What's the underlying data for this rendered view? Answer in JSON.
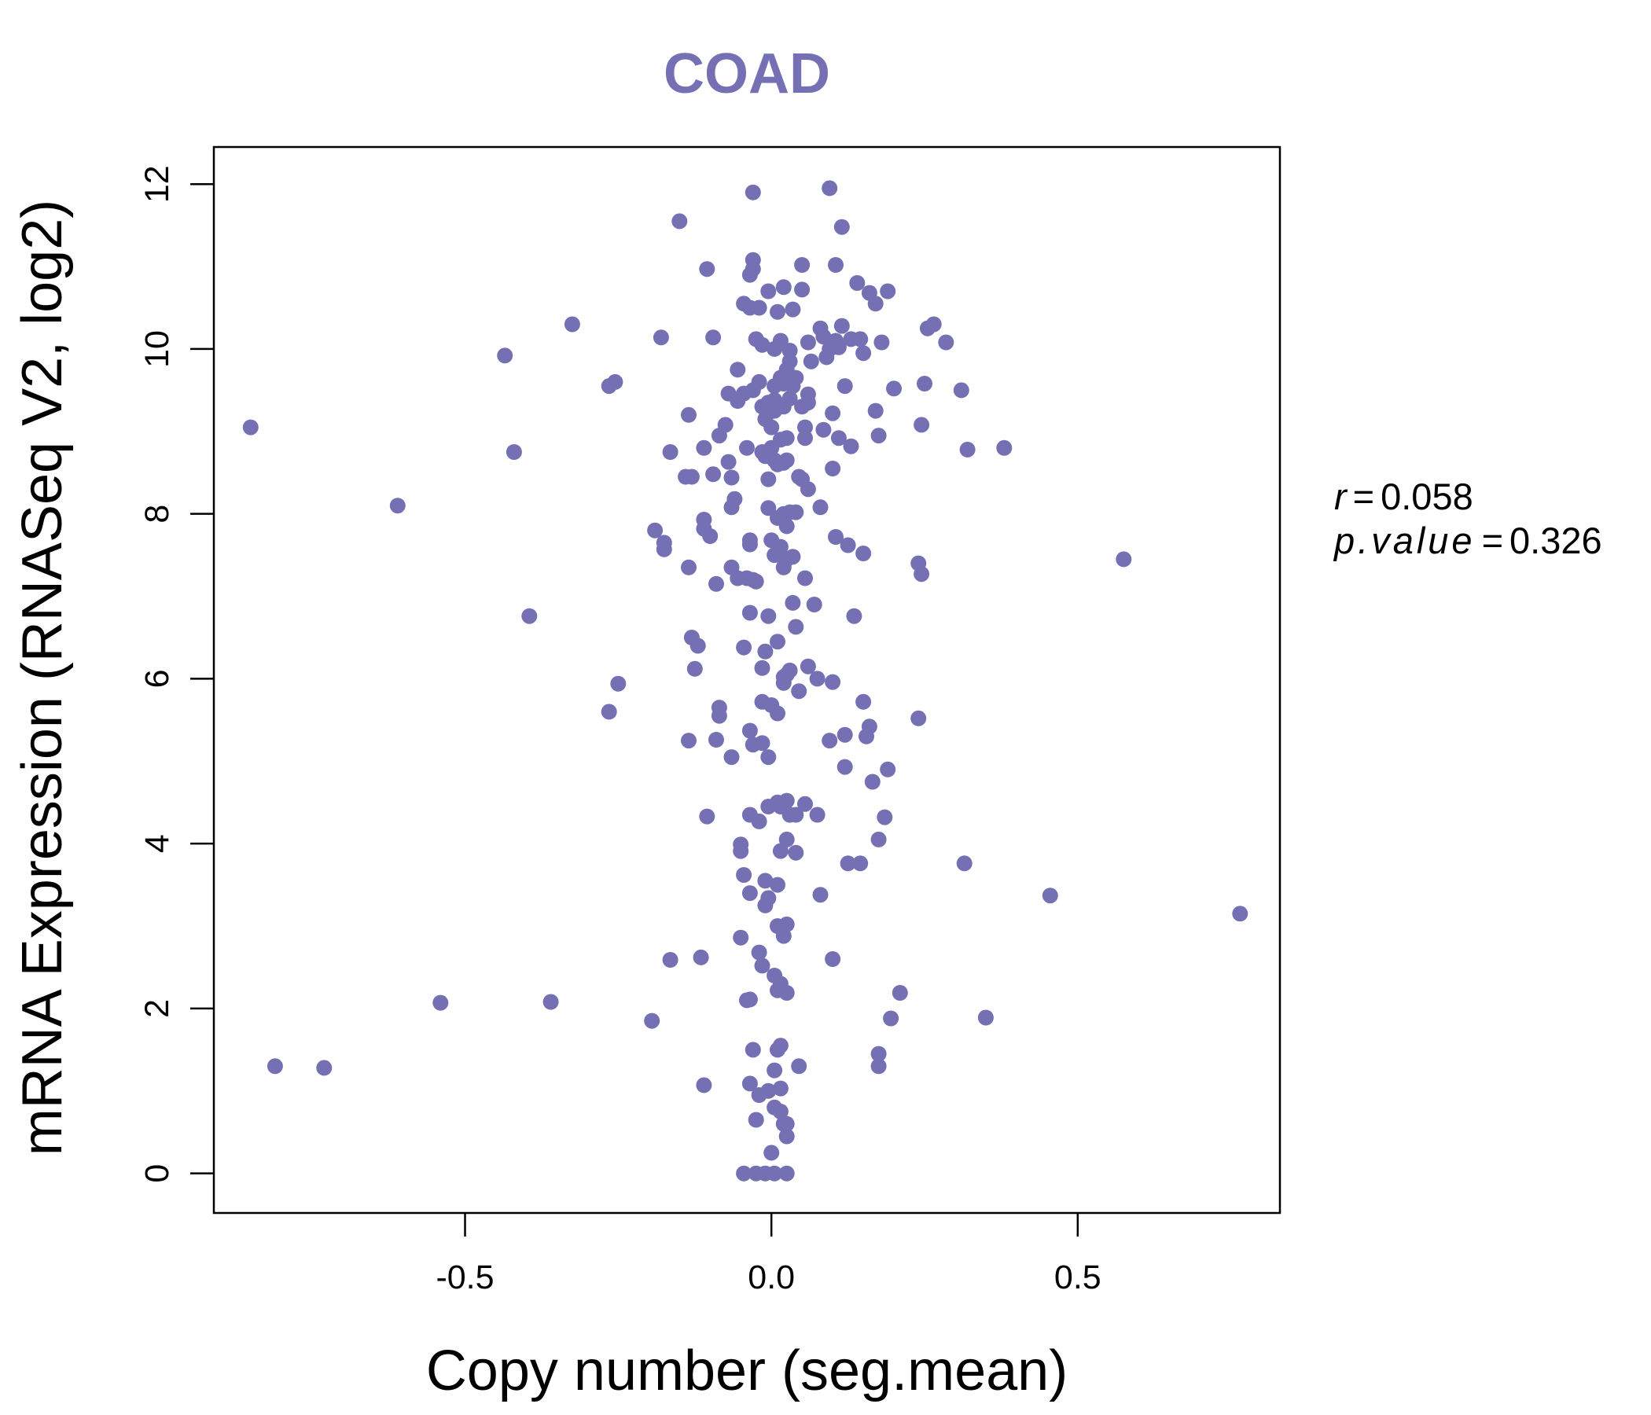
{
  "chart_data": {
    "type": "scatter",
    "title": "COAD",
    "xlabel": "Copy number (seg.mean)",
    "ylabel": "mRNA Expression (RNASeq V2, log2)",
    "xlim": [
      -0.91,
      0.83
    ],
    "ylim": [
      -0.48,
      12.45
    ],
    "x_ticks": [
      -0.5,
      0.0,
      0.5
    ],
    "x_tick_labels": [
      "-0.5",
      "0.0",
      "0.5"
    ],
    "y_ticks": [
      0,
      2,
      4,
      6,
      8,
      10,
      12
    ],
    "y_tick_labels": [
      "0",
      "2",
      "4",
      "6",
      "8",
      "10",
      "12"
    ],
    "grid": false,
    "legend": "none",
    "point_color": "#7570b3",
    "stats": {
      "r_label": "r",
      "r_value": "0.058",
      "p_label": "p.value",
      "p_value": "0.326"
    },
    "points": [
      [
        -0.85,
        9.05
      ],
      [
        -0.81,
        1.3
      ],
      [
        -0.73,
        1.28
      ],
      [
        -0.61,
        8.1
      ],
      [
        -0.54,
        2.07
      ],
      [
        -0.435,
        9.92
      ],
      [
        -0.42,
        8.75
      ],
      [
        -0.395,
        6.76
      ],
      [
        -0.36,
        2.08
      ],
      [
        -0.325,
        10.3
      ],
      [
        -0.265,
        9.55
      ],
      [
        -0.255,
        9.6
      ],
      [
        -0.265,
        5.6
      ],
      [
        -0.25,
        5.94
      ],
      [
        -0.195,
        1.85
      ],
      [
        -0.19,
        7.8
      ],
      [
        -0.18,
        10.14
      ],
      [
        -0.175,
        7.65
      ],
      [
        -0.175,
        7.57
      ],
      [
        -0.165,
        8.75
      ],
      [
        -0.165,
        2.59
      ],
      [
        -0.15,
        11.55
      ],
      [
        -0.14,
        8.45
      ],
      [
        -0.135,
        5.25
      ],
      [
        -0.135,
        9.2
      ],
      [
        -0.135,
        7.35
      ],
      [
        -0.13,
        6.5
      ],
      [
        -0.13,
        8.45
      ],
      [
        -0.125,
        6.12
      ],
      [
        -0.12,
        6.4
      ],
      [
        -0.115,
        2.62
      ],
      [
        -0.11,
        1.07
      ],
      [
        -0.11,
        8.8
      ],
      [
        -0.11,
        7.93
      ],
      [
        -0.11,
        7.82
      ],
      [
        -0.105,
        10.97
      ],
      [
        -0.105,
        4.33
      ],
      [
        -0.1,
        7.73
      ],
      [
        -0.095,
        8.48
      ],
      [
        -0.095,
        10.14
      ],
      [
        -0.09,
        7.15
      ],
      [
        -0.09,
        5.26
      ],
      [
        -0.085,
        8.95
      ],
      [
        -0.085,
        5.65
      ],
      [
        -0.085,
        5.55
      ],
      [
        -0.075,
        9.08
      ],
      [
        -0.07,
        9.46
      ],
      [
        -0.07,
        8.63
      ],
      [
        -0.065,
        7.35
      ],
      [
        -0.065,
        5.05
      ],
      [
        -0.065,
        8.44
      ],
      [
        -0.065,
        8.08
      ],
      [
        -0.06,
        8.18
      ],
      [
        -0.055,
        9.75
      ],
      [
        -0.055,
        9.37
      ],
      [
        -0.055,
        7.22
      ],
      [
        -0.05,
        3.99
      ],
      [
        -0.05,
        3.91
      ],
      [
        -0.05,
        2.86
      ],
      [
        -0.045,
        0.0
      ],
      [
        -0.045,
        10.55
      ],
      [
        -0.045,
        9.46
      ],
      [
        -0.045,
        6.38
      ],
      [
        -0.045,
        3.62
      ],
      [
        -0.04,
        8.8
      ],
      [
        -0.04,
        7.22
      ],
      [
        -0.04,
        2.1
      ],
      [
        -0.035,
        10.9
      ],
      [
        -0.035,
        10.5
      ],
      [
        -0.035,
        7.68
      ],
      [
        -0.035,
        7.63
      ],
      [
        -0.035,
        6.8
      ],
      [
        -0.035,
        5.37
      ],
      [
        -0.035,
        4.35
      ],
      [
        -0.035,
        3.4
      ],
      [
        -0.035,
        2.11
      ],
      [
        -0.035,
        1.09
      ],
      [
        -0.03,
        11.9
      ],
      [
        -0.03,
        11.08
      ],
      [
        -0.03,
        10.97
      ],
      [
        -0.03,
        9.5
      ],
      [
        -0.03,
        7.2
      ],
      [
        -0.03,
        5.2
      ],
      [
        -0.03,
        1.5
      ],
      [
        -0.025,
        10.12
      ],
      [
        -0.025,
        7.18
      ],
      [
        -0.025,
        0.0
      ],
      [
        -0.025,
        0.65
      ],
      [
        -0.02,
        10.5
      ],
      [
        -0.02,
        9.6
      ],
      [
        -0.02,
        4.27
      ],
      [
        -0.02,
        2.68
      ],
      [
        -0.02,
        0.95
      ],
      [
        -0.015,
        10.05
      ],
      [
        -0.015,
        9.3
      ],
      [
        -0.015,
        8.75
      ],
      [
        -0.015,
        6.13
      ],
      [
        -0.015,
        5.72
      ],
      [
        -0.015,
        5.22
      ],
      [
        -0.015,
        2.52
      ],
      [
        -0.01,
        9.15
      ],
      [
        -0.01,
        8.7
      ],
      [
        -0.01,
        6.33
      ],
      [
        -0.01,
        3.55
      ],
      [
        -0.01,
        3.25
      ],
      [
        -0.01,
        0.0
      ],
      [
        -0.005,
        10.7
      ],
      [
        -0.005,
        9.35
      ],
      [
        -0.005,
        8.42
      ],
      [
        -0.005,
        8.07
      ],
      [
        -0.005,
        6.76
      ],
      [
        -0.005,
        5.05
      ],
      [
        -0.005,
        4.45
      ],
      [
        -0.005,
        3.34
      ],
      [
        -0.005,
        1.0
      ],
      [
        0.0,
        9.05
      ],
      [
        0.0,
        8.8
      ],
      [
        0.0,
        7.68
      ],
      [
        0.0,
        5.68
      ],
      [
        0.0,
        0.25
      ],
      [
        0.005,
        9.55
      ],
      [
        0.005,
        9.38
      ],
      [
        0.005,
        9.25
      ],
      [
        0.005,
        8.65
      ],
      [
        0.005,
        7.5
      ],
      [
        0.005,
        0.0
      ],
      [
        0.005,
        0.8
      ],
      [
        0.005,
        2.4
      ],
      [
        0.005,
        1.25
      ],
      [
        0.005,
        10.0
      ],
      [
        0.01,
        10.45
      ],
      [
        0.01,
        8.6
      ],
      [
        0.01,
        7.95
      ],
      [
        0.01,
        6.45
      ],
      [
        0.01,
        5.58
      ],
      [
        0.01,
        4.5
      ],
      [
        0.01,
        3.5
      ],
      [
        0.01,
        3.0
      ],
      [
        0.01,
        1.5
      ],
      [
        0.01,
        2.22
      ],
      [
        0.015,
        9.65
      ],
      [
        0.015,
        8.9
      ],
      [
        0.015,
        7.6
      ],
      [
        0.015,
        4.45
      ],
      [
        0.015,
        3.91
      ],
      [
        0.015,
        2.3
      ],
      [
        0.015,
        1.55
      ],
      [
        0.015,
        1.03
      ],
      [
        0.015,
        0.75
      ],
      [
        0.015,
        10.1
      ],
      [
        0.02,
        10.75
      ],
      [
        0.02,
        9.58
      ],
      [
        0.02,
        9.3
      ],
      [
        0.02,
        8.62
      ],
      [
        0.02,
        8.0
      ],
      [
        0.02,
        7.35
      ],
      [
        0.02,
        6.02
      ],
      [
        0.02,
        5.95
      ],
      [
        0.02,
        4.45
      ],
      [
        0.02,
        2.88
      ],
      [
        0.02,
        0.6
      ],
      [
        0.025,
        9.75
      ],
      [
        0.025,
        8.92
      ],
      [
        0.025,
        8.65
      ],
      [
        0.025,
        7.85
      ],
      [
        0.025,
        7.45
      ],
      [
        0.025,
        6.05
      ],
      [
        0.025,
        4.52
      ],
      [
        0.025,
        4.05
      ],
      [
        0.025,
        3.02
      ],
      [
        0.025,
        2.19
      ],
      [
        0.025,
        0.6
      ],
      [
        0.025,
        0.0
      ],
      [
        0.025,
        0.45
      ],
      [
        0.03,
        9.98
      ],
      [
        0.03,
        9.85
      ],
      [
        0.03,
        9.65
      ],
      [
        0.03,
        9.4
      ],
      [
        0.03,
        8.02
      ],
      [
        0.03,
        6.1
      ],
      [
        0.03,
        4.35
      ],
      [
        0.035,
        10.48
      ],
      [
        0.035,
        9.55
      ],
      [
        0.035,
        7.48
      ],
      [
        0.035,
        6.92
      ],
      [
        0.04,
        9.65
      ],
      [
        0.04,
        8.02
      ],
      [
        0.04,
        6.63
      ],
      [
        0.04,
        3.89
      ],
      [
        0.04,
        4.35
      ],
      [
        0.045,
        8.45
      ],
      [
        0.045,
        1.3
      ],
      [
        0.045,
        5.85
      ],
      [
        0.05,
        11.02
      ],
      [
        0.05,
        10.72
      ],
      [
        0.05,
        9.3
      ],
      [
        0.05,
        8.42
      ],
      [
        0.055,
        9.05
      ],
      [
        0.055,
        8.92
      ],
      [
        0.055,
        7.22
      ],
      [
        0.055,
        4.48
      ],
      [
        0.06,
        10.08
      ],
      [
        0.06,
        9.45
      ],
      [
        0.06,
        9.35
      ],
      [
        0.06,
        8.3
      ],
      [
        0.06,
        6.15
      ],
      [
        0.065,
        9.85
      ],
      [
        0.07,
        6.9
      ],
      [
        0.075,
        6.0
      ],
      [
        0.075,
        4.35
      ],
      [
        0.08,
        10.25
      ],
      [
        0.08,
        8.08
      ],
      [
        0.08,
        3.38
      ],
      [
        0.085,
        10.15
      ],
      [
        0.085,
        9.02
      ],
      [
        0.09,
        9.9
      ],
      [
        0.095,
        11.95
      ],
      [
        0.095,
        10.0
      ],
      [
        0.095,
        5.25
      ],
      [
        0.1,
        9.22
      ],
      [
        0.1,
        8.55
      ],
      [
        0.1,
        5.96
      ],
      [
        0.1,
        2.6
      ],
      [
        0.105,
        11.02
      ],
      [
        0.105,
        10.1
      ],
      [
        0.105,
        7.72
      ],
      [
        0.11,
        10.02
      ],
      [
        0.11,
        8.92
      ],
      [
        0.115,
        11.48
      ],
      [
        0.115,
        10.28
      ],
      [
        0.12,
        9.55
      ],
      [
        0.12,
        5.32
      ],
      [
        0.12,
        4.93
      ],
      [
        0.125,
        7.62
      ],
      [
        0.125,
        3.76
      ],
      [
        0.13,
        10.12
      ],
      [
        0.13,
        8.82
      ],
      [
        0.135,
        6.76
      ],
      [
        0.14,
        10.8
      ],
      [
        0.145,
        10.12
      ],
      [
        0.145,
        3.76
      ],
      [
        0.15,
        9.95
      ],
      [
        0.15,
        7.52
      ],
      [
        0.15,
        5.72
      ],
      [
        0.155,
        5.3
      ],
      [
        0.16,
        10.68
      ],
      [
        0.16,
        5.42
      ],
      [
        0.165,
        4.75
      ],
      [
        0.17,
        10.55
      ],
      [
        0.17,
        9.25
      ],
      [
        0.175,
        8.95
      ],
      [
        0.175,
        4.05
      ],
      [
        0.175,
        1.45
      ],
      [
        0.175,
        1.3
      ],
      [
        0.18,
        10.08
      ],
      [
        0.185,
        4.32
      ],
      [
        0.19,
        10.7
      ],
      [
        0.19,
        4.9
      ],
      [
        0.195,
        1.88
      ],
      [
        0.2,
        9.52
      ],
      [
        0.21,
        2.19
      ],
      [
        0.24,
        7.4
      ],
      [
        0.24,
        5.52
      ],
      [
        0.245,
        7.27
      ],
      [
        0.245,
        9.08
      ],
      [
        0.25,
        9.58
      ],
      [
        0.255,
        10.25
      ],
      [
        0.265,
        10.3
      ],
      [
        0.285,
        10.08
      ],
      [
        0.31,
        9.5
      ],
      [
        0.315,
        3.76
      ],
      [
        0.32,
        8.78
      ],
      [
        0.35,
        1.89
      ],
      [
        0.38,
        8.8
      ],
      [
        0.455,
        3.37
      ],
      [
        0.575,
        7.45
      ],
      [
        0.765,
        3.15
      ]
    ]
  }
}
